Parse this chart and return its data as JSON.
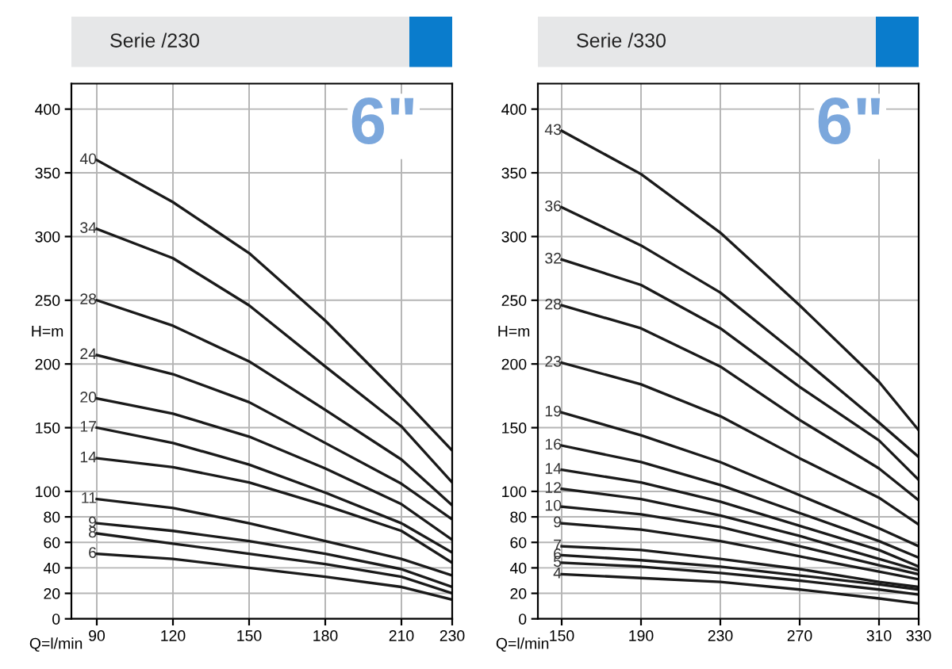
{
  "chart_data": [
    {
      "type": "line",
      "title": "Serie /230",
      "xlabel": "Q=l/min",
      "ylabel": "H=m",
      "annotations": [
        "6\""
      ],
      "x": [
        90,
        120,
        150,
        180,
        210,
        230
      ],
      "xlim": [
        80,
        230
      ],
      "xticks": [
        90,
        120,
        150,
        180,
        210,
        230
      ],
      "ylim": [
        0,
        420
      ],
      "yticks": [
        0,
        20,
        40,
        60,
        80,
        100,
        150,
        200,
        250,
        300,
        350,
        400
      ],
      "grid": true,
      "legend": false,
      "marker": "none",
      "line_style": "solid",
      "series": [
        {
          "name": "40",
          "color": "#1a1a1a",
          "values": [
            360,
            327,
            287,
            234,
            174,
            132
          ]
        },
        {
          "name": "34",
          "color": "#1a1a1a",
          "values": [
            306,
            283,
            246,
            198,
            151,
            107
          ]
        },
        {
          "name": "28",
          "color": "#1a1a1a",
          "values": [
            250,
            230,
            202,
            164,
            125,
            89
          ]
        },
        {
          "name": "24",
          "color": "#1a1a1a",
          "values": [
            207,
            192,
            170,
            138,
            106,
            78
          ]
        },
        {
          "name": "20",
          "color": "#1a1a1a",
          "values": [
            173,
            161,
            143,
            118,
            90,
            62
          ]
        },
        {
          "name": "17",
          "color": "#1a1a1a",
          "values": [
            150,
            138,
            121,
            99,
            75,
            52
          ]
        },
        {
          "name": "14",
          "color": "#1a1a1a",
          "values": [
            126,
            119,
            107,
            89,
            69,
            44
          ]
        },
        {
          "name": "11",
          "color": "#1a1a1a",
          "values": [
            94,
            87,
            75,
            61,
            47,
            34
          ]
        },
        {
          "name": "9",
          "color": "#1a1a1a",
          "values": [
            75,
            69,
            61,
            51,
            39,
            25
          ]
        },
        {
          "name": "8",
          "color": "#1a1a1a",
          "values": [
            67,
            59,
            51,
            43,
            33,
            20
          ]
        },
        {
          "name": "6",
          "color": "#1a1a1a",
          "values": [
            51,
            47,
            40,
            33,
            25,
            15
          ]
        }
      ]
    },
    {
      "type": "line",
      "title": "Serie /330",
      "xlabel": "Q=l/min",
      "ylabel": "H=m",
      "annotations": [
        "6\""
      ],
      "x": [
        150,
        190,
        230,
        270,
        310,
        330
      ],
      "xlim": [
        138,
        330
      ],
      "xticks": [
        150,
        190,
        230,
        270,
        310,
        330
      ],
      "ylim": [
        0,
        420
      ],
      "yticks": [
        0,
        20,
        40,
        60,
        80,
        100,
        150,
        200,
        250,
        300,
        350,
        400
      ],
      "grid": true,
      "legend": false,
      "marker": "none",
      "line_style": "solid",
      "series": [
        {
          "name": "43",
          "color": "#1a1a1a",
          "values": [
            383,
            349,
            303,
            246,
            186,
            148
          ]
        },
        {
          "name": "36",
          "color": "#1a1a1a",
          "values": [
            323,
            293,
            256,
            206,
            154,
            127
          ]
        },
        {
          "name": "32",
          "color": "#1a1a1a",
          "values": [
            282,
            262,
            228,
            182,
            140,
            109
          ]
        },
        {
          "name": "28",
          "color": "#1a1a1a",
          "values": [
            246,
            228,
            198,
            156,
            118,
            93
          ]
        },
        {
          "name": "23",
          "color": "#1a1a1a",
          "values": [
            201,
            184,
            159,
            126,
            95,
            74
          ]
        },
        {
          "name": "19",
          "color": "#1a1a1a",
          "values": [
            162,
            144,
            123,
            97,
            71,
            57
          ]
        },
        {
          "name": "16",
          "color": "#1a1a1a",
          "values": [
            136,
            123,
            105,
            83,
            61,
            48
          ]
        },
        {
          "name": "14",
          "color": "#1a1a1a",
          "values": [
            117,
            107,
            92,
            73,
            54,
            41
          ]
        },
        {
          "name": "12",
          "color": "#1a1a1a",
          "values": [
            102,
            94,
            81,
            65,
            47,
            38
          ]
        },
        {
          "name": "10",
          "color": "#1a1a1a",
          "values": [
            88,
            82,
            72,
            57,
            42,
            35
          ]
        },
        {
          "name": "9",
          "color": "#1a1a1a",
          "values": [
            75,
            70,
            61,
            49,
            37,
            31
          ]
        },
        {
          "name": "7",
          "color": "#1a1a1a",
          "values": [
            57,
            54,
            47,
            39,
            29,
            25
          ]
        },
        {
          "name": "6",
          "color": "#1a1a1a",
          "values": [
            50,
            46,
            41,
            34,
            27,
            23
          ]
        },
        {
          "name": "5",
          "color": "#1a1a1a",
          "values": [
            44,
            41,
            36,
            30,
            23,
            19
          ]
        },
        {
          "name": "4",
          "color": "#1a1a1a",
          "values": [
            35,
            32,
            29,
            23,
            16,
            12
          ]
        }
      ]
    }
  ]
}
